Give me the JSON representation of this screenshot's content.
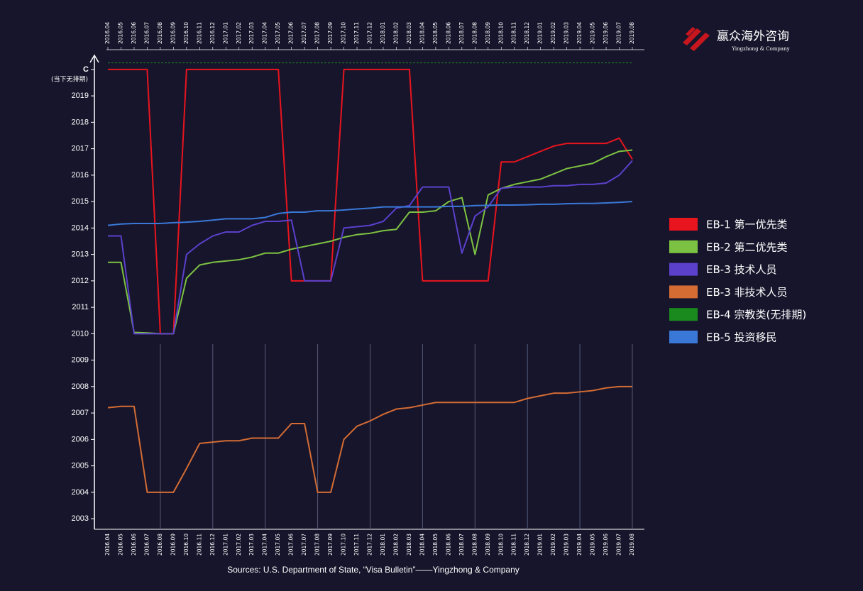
{
  "chart_data": {
    "type": "line",
    "logo": {
      "name": "赢众海外咨询",
      "sub": "Yingzhong & Company"
    },
    "annotation": "(当下无排期)",
    "source": "Sources: U.S. Department of State, “Visa Bulletin”——Yingzhong & Company",
    "categories": [
      "2016.04",
      "2016.05",
      "2016.06",
      "2016.07",
      "2016.08",
      "2016.09",
      "2016.10",
      "2016.11",
      "2016.12",
      "2017.01",
      "2017.02",
      "2017.03",
      "2017.04",
      "2017.05",
      "2017.06",
      "2017.07",
      "2017.08",
      "2017.09",
      "2017.10",
      "2017.11",
      "2017.12",
      "2018.01",
      "2018.02",
      "2018.03",
      "2018.04",
      "2018.05",
      "2018.06",
      "2018.07",
      "2018.08",
      "2018.09",
      "2018.10",
      "2018.11",
      "2018.12",
      "2019.01",
      "2019.02",
      "2019.03",
      "2019.04",
      "2019.05",
      "2019.06",
      "2019.07",
      "2019.08"
    ],
    "ylim": [
      2002.6,
      2020.48
    ],
    "yticks": [
      2003,
      2004,
      2005,
      2006,
      2007,
      2008,
      2009,
      2010,
      2011,
      2012,
      2013,
      2014,
      2015,
      2016,
      2017,
      2018,
      2019,
      {
        "value": 2020,
        "label": "C"
      }
    ],
    "legend": "right",
    "series": [
      {
        "name": "EB-1 第一优先类",
        "color": "#e8141e",
        "values": [
          2020,
          2020,
          2020,
          2020,
          2010,
          2010,
          2020,
          2020,
          2020,
          2020,
          2020,
          2020,
          2020,
          2020,
          2012,
          2012,
          2012,
          2012,
          2020,
          2020,
          2020,
          2020,
          2020,
          2020,
          2012,
          2012,
          2012,
          2012,
          2012,
          2012,
          2016.5,
          2016.5,
          2016.7,
          2016.9,
          2017.1,
          2017.2,
          2017.2,
          2017.2,
          2017.2,
          2017.4,
          2016.6
        ]
      },
      {
        "name": "EB-2 第二优先类",
        "color": "#7cc242",
        "values": [
          2012.7,
          2012.7,
          2010.05,
          2010.03,
          2010,
          2010,
          2012.1,
          2012.6,
          2012.7,
          2012.75,
          2012.8,
          2012.9,
          2013.05,
          2013.05,
          2013.2,
          2013.3,
          2013.4,
          2013.5,
          2013.65,
          2013.75,
          2013.8,
          2013.9,
          2013.95,
          2014.6,
          2014.6,
          2014.65,
          2015,
          2015.15,
          2013,
          2015.25,
          2015.5,
          2015.65,
          2015.75,
          2015.85,
          2016.05,
          2016.25,
          2016.35,
          2016.45,
          2016.7,
          2016.9,
          2016.95
        ]
      },
      {
        "name": "EB-3 技术人员",
        "color": "#5b40cc",
        "values": [
          2013.7,
          2013.7,
          2010,
          2010,
          2010,
          2010,
          2013,
          2013.4,
          2013.7,
          2013.85,
          2013.85,
          2014.1,
          2014.25,
          2014.25,
          2014.3,
          2012,
          2012,
          2012,
          2014,
          2014.05,
          2014.1,
          2014.25,
          2014.75,
          2014.85,
          2015.55,
          2015.55,
          2015.55,
          2013.05,
          2014.45,
          2014.8,
          2015.5,
          2015.55,
          2015.55,
          2015.55,
          2015.6,
          2015.6,
          2015.65,
          2015.65,
          2015.7,
          2016,
          2016.55
        ]
      },
      {
        "name": "EB-3 非技术人员",
        "color": "#d46c34",
        "values": [
          2007.2,
          2007.25,
          2007.25,
          2004,
          2004,
          2004,
          2004.9,
          2005.85,
          2005.9,
          2005.95,
          2005.95,
          2006.05,
          2006.05,
          2006.05,
          2006.6,
          2006.6,
          2004,
          2004,
          2006,
          2006.5,
          2006.7,
          2006.95,
          2007.15,
          2007.2,
          2007.3,
          2007.4,
          2007.4,
          2007.4,
          2007.4,
          2007.4,
          2007.4,
          2007.4,
          2007.55,
          2007.65,
          2007.75,
          2007.75,
          2007.8,
          2007.85,
          2007.95,
          2008,
          2008
        ]
      },
      {
        "name": "EB-4 宗教类(无排期)",
        "color": "#1a8a1e",
        "values": [
          2020.25,
          2020.25,
          2020.25,
          2020.25,
          2020.25,
          2020.25,
          2020.25,
          2020.25,
          2020.25,
          2020.25,
          2020.25,
          2020.25,
          2020.25,
          2020.25,
          2020.25,
          2020.25,
          2020.25,
          2020.25,
          2020.25,
          2020.25,
          2020.25,
          2020.25,
          2020.25,
          2020.25,
          2020.25,
          2020.25,
          2020.25,
          2020.25,
          2020.25,
          2020.25,
          2020.25,
          2020.25,
          2020.25,
          2020.25,
          2020.25,
          2020.25,
          2020.25,
          2020.25,
          2020.25,
          2020.25,
          2020.25
        ]
      },
      {
        "name": "EB-5 投资移民",
        "color": "#3a78d8",
        "values": [
          2014.1,
          2014.15,
          2014.17,
          2014.17,
          2014.17,
          2014.2,
          2014.22,
          2014.25,
          2014.3,
          2014.35,
          2014.35,
          2014.35,
          2014.4,
          2014.55,
          2014.6,
          2014.6,
          2014.65,
          2014.65,
          2014.68,
          2014.72,
          2014.75,
          2014.8,
          2014.8,
          2014.8,
          2014.8,
          2014.8,
          2014.82,
          2014.82,
          2014.85,
          2014.86,
          2014.87,
          2014.87,
          2014.88,
          2014.9,
          2014.9,
          2014.92,
          2014.93,
          2014.93,
          2014.95,
          2014.97,
          2015
        ]
      }
    ]
  }
}
